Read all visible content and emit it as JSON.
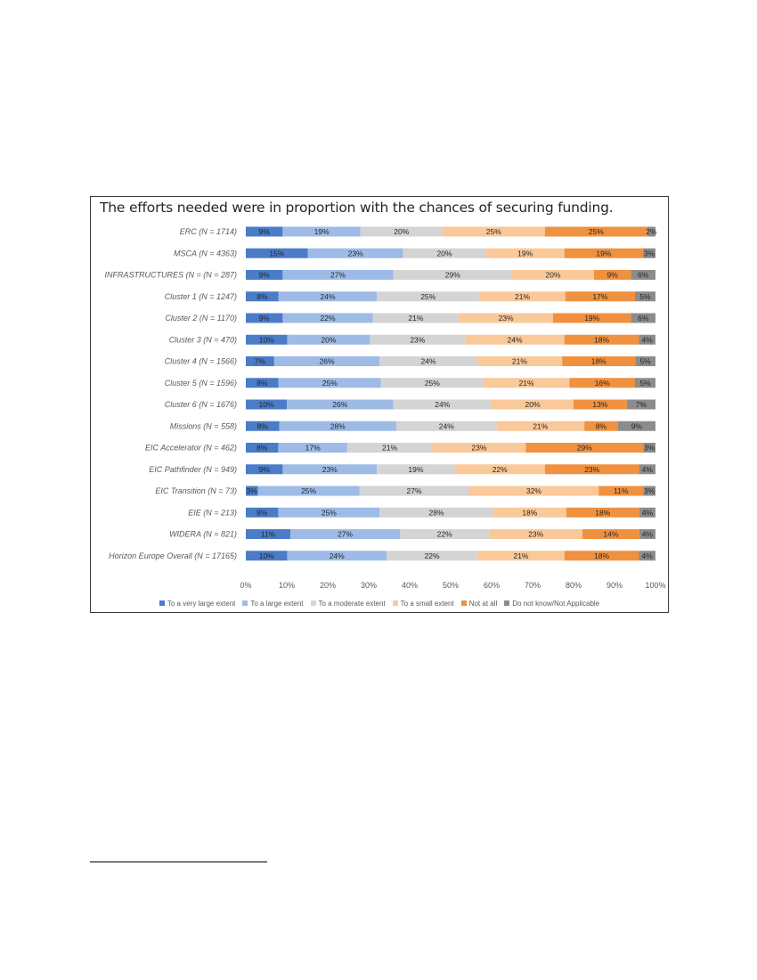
{
  "chart_data": {
    "type": "bar",
    "orientation": "horizontal",
    "stacked": "percent",
    "title": "The efforts needed were in proportion with the chances of securing funding.",
    "categories": [
      "ERC (N = 1714)",
      "MSCA (N = 4363)",
      "INFRASTRUCTURES (N =  (N = 287)",
      "Cluster 1 (N = 1247)",
      "Cluster 2 (N = 1170)",
      "Cluster 3 (N = 470)",
      "Cluster 4 (N = 1566)",
      "Cluster 5 (N = 1596)",
      "Cluster 6 (N = 1676)",
      "Missions (N = 558)",
      "EIC Accelerator (N = 462)",
      "EIC Pathfinder (N = 949)",
      "EIC Transition (N = 73)",
      "EIE (N = 213)",
      "WIDERA (N = 821)",
      "Horizon Europe Overall (N = 17165)"
    ],
    "series": [
      {
        "name": "To a very large extent",
        "color": "#4a7cc7",
        "values": [
          9,
          15,
          9,
          8,
          9,
          10,
          7,
          8,
          10,
          8,
          8,
          9,
          3,
          8,
          11,
          10
        ]
      },
      {
        "name": "To a large extent",
        "color": "#9dbbe6",
        "values": [
          19,
          23,
          27,
          24,
          22,
          20,
          26,
          25,
          26,
          28,
          17,
          23,
          25,
          25,
          27,
          24
        ]
      },
      {
        "name": "To a moderate extent",
        "color": "#d4d4d4",
        "values": [
          20,
          20,
          29,
          25,
          21,
          23,
          24,
          25,
          24,
          24,
          21,
          19,
          27,
          28,
          22,
          22
        ]
      },
      {
        "name": "To a small extent",
        "color": "#f9c99a",
        "values": [
          25,
          19,
          20,
          21,
          23,
          24,
          21,
          21,
          20,
          21,
          23,
          22,
          32,
          18,
          23,
          21
        ]
      },
      {
        "name": "Not at all",
        "color": "#f0913f",
        "values": [
          25,
          19,
          9,
          17,
          19,
          18,
          18,
          16,
          13,
          8,
          29,
          23,
          11,
          18,
          14,
          18
        ]
      },
      {
        "name": "Do not know/Not Applicable",
        "color": "#8c8c8c",
        "values": [
          2,
          3,
          6,
          5,
          6,
          4,
          5,
          5,
          7,
          9,
          3,
          4,
          3,
          4,
          4,
          4
        ]
      }
    ],
    "xaxis": {
      "ticks": [
        "0%",
        "10%",
        "20%",
        "30%",
        "40%",
        "50%",
        "60%",
        "70%",
        "80%",
        "90%",
        "100%"
      ],
      "range": [
        0,
        100
      ]
    },
    "legend_position": "bottom",
    "grid": false
  }
}
